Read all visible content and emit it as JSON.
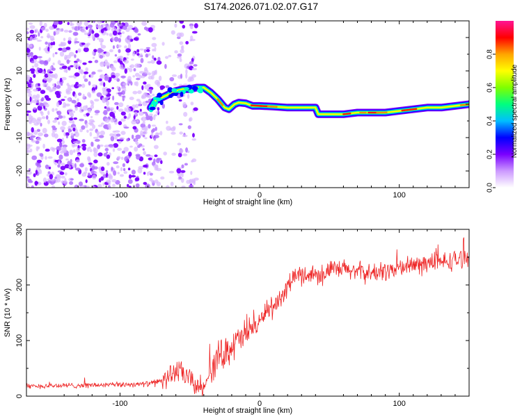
{
  "title": "S174.2026.071.02.07.G17",
  "chart_data": [
    {
      "type": "heatmap",
      "title": "",
      "xlabel": "Height of straight line (km)",
      "ylabel": "Frequency (Hz)",
      "xlim": [
        -167,
        150
      ],
      "ylim": [
        -25,
        25
      ],
      "xticks": [
        -100,
        0,
        100
      ],
      "xtick_labels": [
        "-100",
        "0",
        "100"
      ],
      "yticks": [
        20,
        10,
        0,
        -10,
        -20
      ],
      "ytick_labels": [
        "20",
        "10",
        "0",
        "-10",
        "-20"
      ],
      "ridge_x": [
        -78,
        -75,
        -70,
        -65,
        -60,
        -55,
        -50,
        -45,
        -40,
        -35,
        -30,
        -25,
        -22,
        -18,
        -15,
        -10,
        -5,
        0,
        10,
        20,
        30,
        40,
        42,
        50,
        60,
        70,
        80,
        90,
        100,
        110,
        120,
        130,
        140,
        150
      ],
      "ridge_y": [
        -1,
        1,
        2,
        3,
        4,
        4.5,
        4.5,
        5,
        5,
        3.5,
        1.5,
        -1,
        -1.5,
        0,
        0.5,
        0.3,
        -0.5,
        -0.5,
        -0.7,
        -1,
        -1,
        -1,
        -3,
        -3,
        -3,
        -2.5,
        -2.5,
        -2.5,
        -2,
        -1.5,
        -1,
        -1,
        -0.5,
        0
      ],
      "noise_region_x": [
        -167,
        -45
      ],
      "colorbar": {
        "label": "Normalized spectral amplitude",
        "range": [
          0.0,
          1.0
        ],
        "ticks": [
          0.0,
          0.2,
          0.4,
          0.6,
          0.8
        ],
        "tick_labels": [
          "0.0",
          "0.2",
          "0.4",
          "0.6",
          "0.8"
        ],
        "colors": [
          "#ffffff",
          "#cc99ff",
          "#7a00ff",
          "#0000ff",
          "#00bfff",
          "#00ff7f",
          "#7fff00",
          "#ffff00",
          "#ffa500",
          "#ff0000",
          "#ff1493"
        ]
      }
    },
    {
      "type": "line",
      "title": "",
      "xlabel": "Height of straight line (km)",
      "ylabel": "SNR (10 * v/v)",
      "xlim": [
        -167,
        150
      ],
      "ylim": [
        0,
        300
      ],
      "xticks": [
        -100,
        0,
        100
      ],
      "xtick_labels": [
        "-100",
        "0",
        "100"
      ],
      "yticks": [
        0,
        100,
        200,
        300
      ],
      "ytick_labels": [
        "0",
        "100",
        "200",
        "300"
      ],
      "color": "#ee2222",
      "x": [
        -167,
        -140,
        -110,
        -80,
        -70,
        -60,
        -55,
        -50,
        -45,
        -40,
        -35,
        -30,
        -25,
        -20,
        -15,
        -10,
        -5,
        0,
        5,
        10,
        15,
        20,
        25,
        30,
        40,
        50,
        60,
        70,
        80,
        90,
        100,
        110,
        120,
        130,
        140,
        150
      ],
      "y": [
        18,
        19,
        20,
        22,
        28,
        45,
        40,
        30,
        18,
        15,
        45,
        70,
        80,
        90,
        100,
        110,
        125,
        130,
        160,
        155,
        170,
        200,
        215,
        218,
        220,
        225,
        228,
        225,
        220,
        225,
        230,
        235,
        240,
        240,
        245,
        248
      ]
    }
  ]
}
